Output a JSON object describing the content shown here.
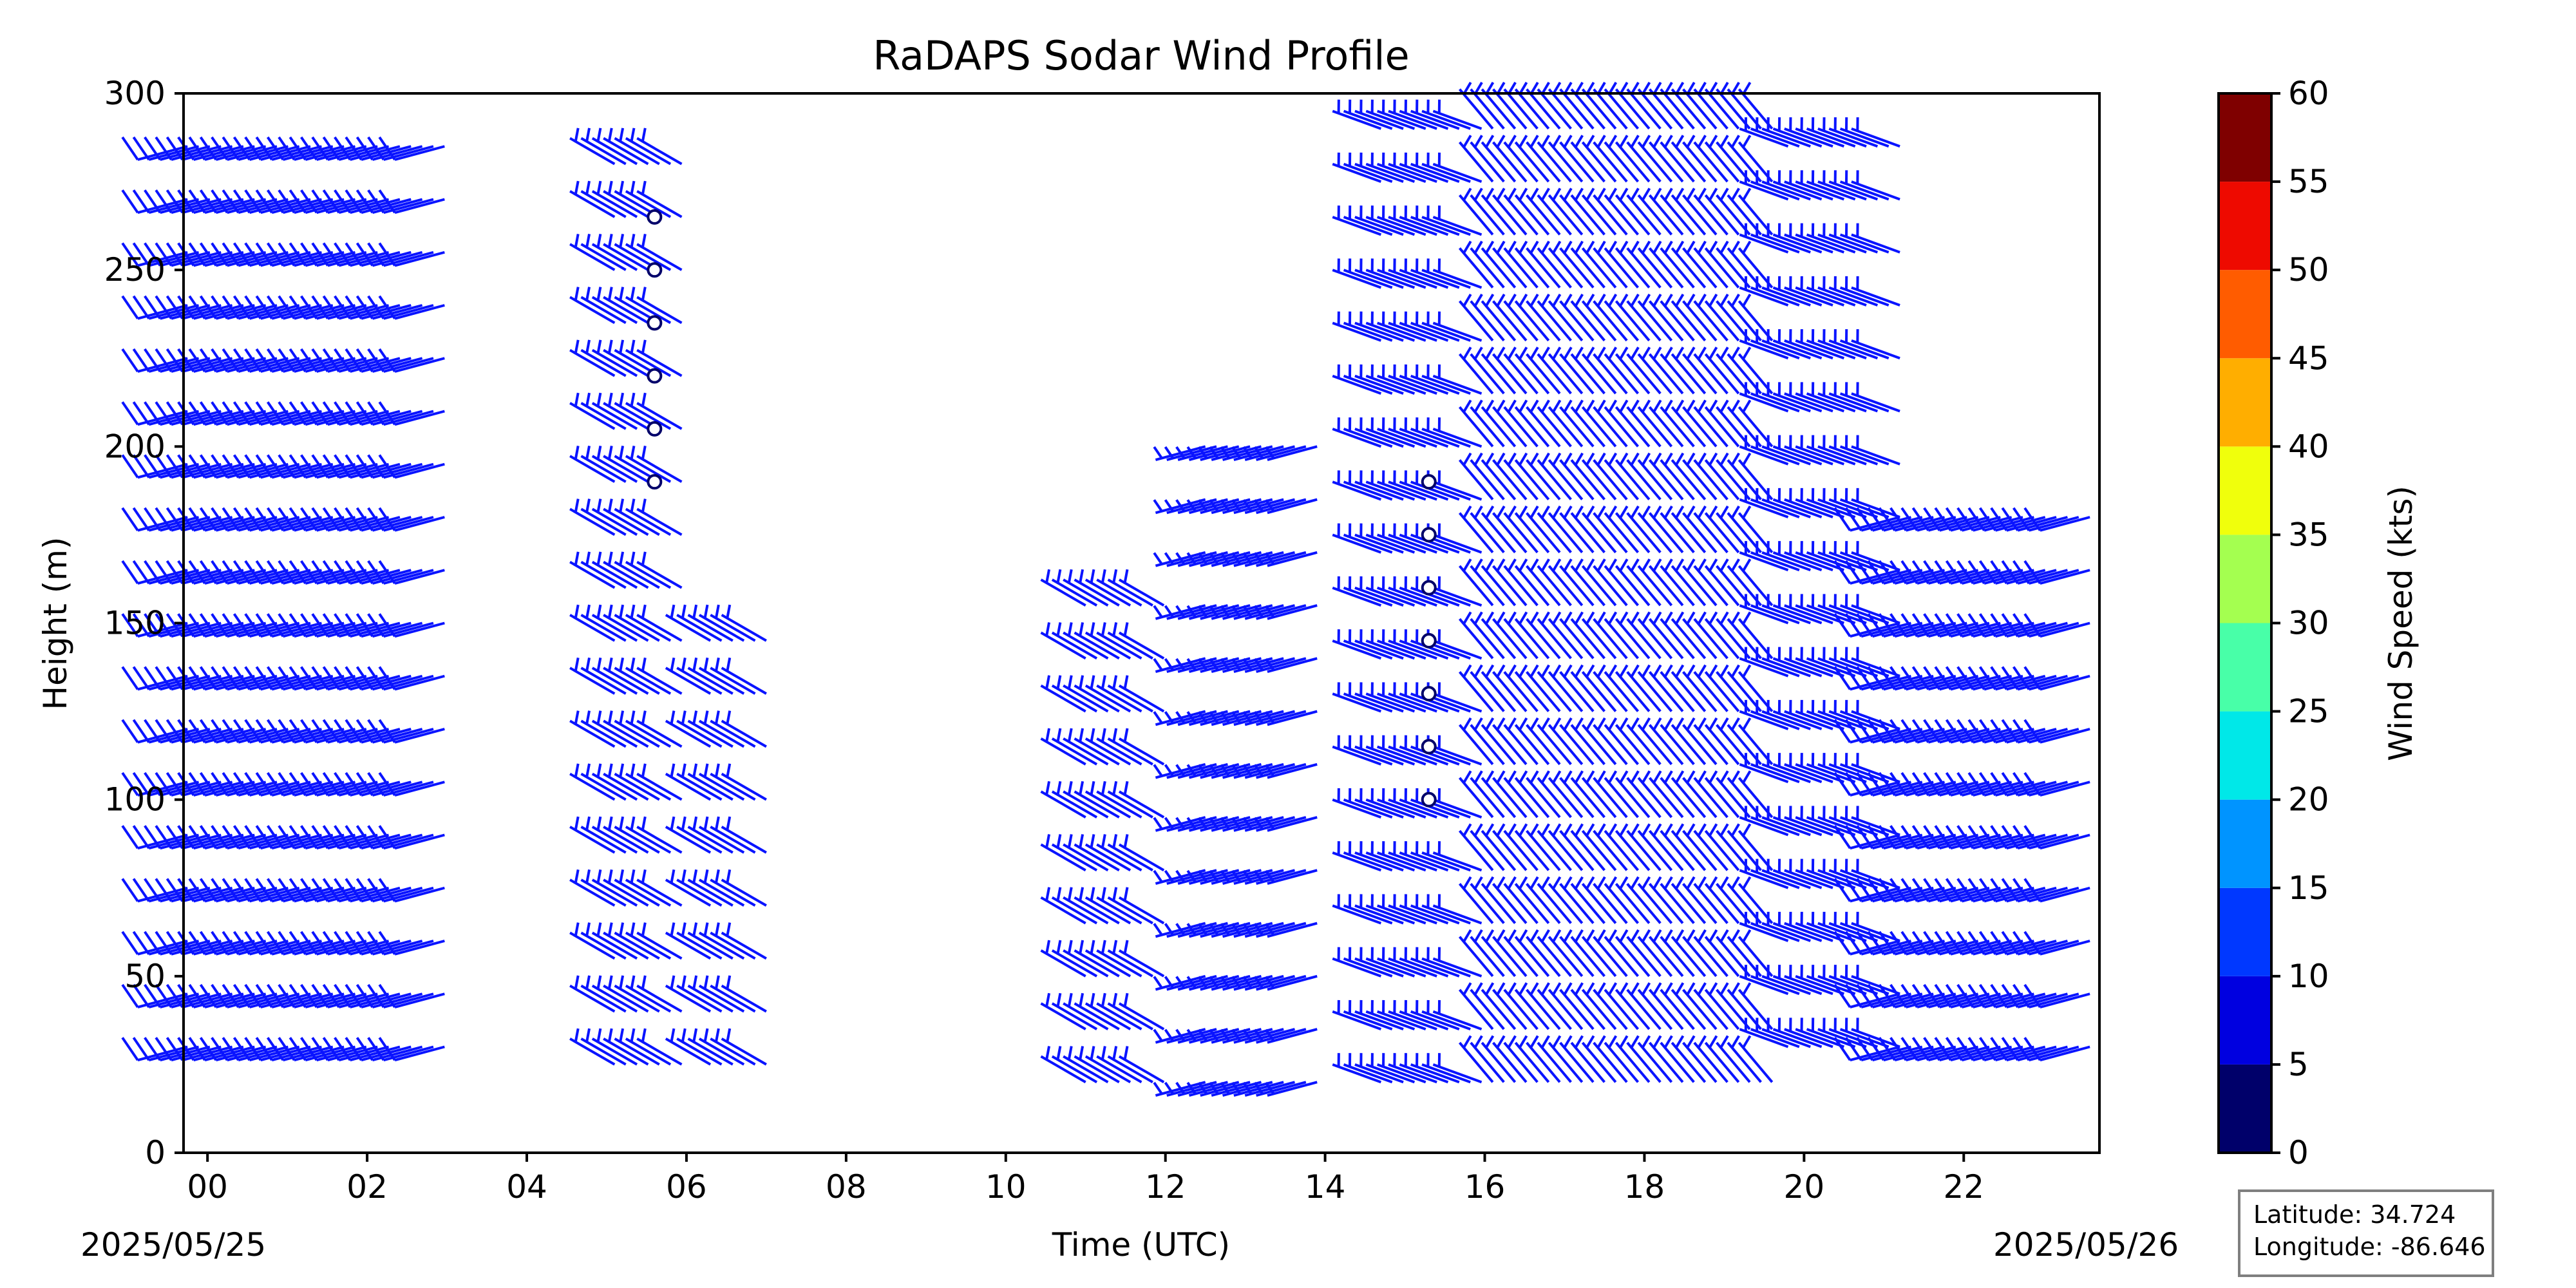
{
  "chart_data": {
    "type": "wind_barb_profile",
    "title": "RaDAPS Sodar Wind Profile",
    "xlabel": "Time (UTC)",
    "ylabel": "Height (m)",
    "x_unit": "hours UTC",
    "xlim": [
      -0.3,
      23.7
    ],
    "ylim": [
      0,
      300
    ],
    "x_tick_labels": [
      "00",
      "02",
      "04",
      "06",
      "08",
      "10",
      "12",
      "14",
      "16",
      "18",
      "20",
      "22"
    ],
    "x_tick_values": [
      0,
      2,
      4,
      6,
      8,
      10,
      12,
      14,
      16,
      18,
      20,
      22
    ],
    "y_tick_values": [
      0,
      50,
      100,
      150,
      200,
      250,
      300
    ],
    "start_date": "2025/05/25",
    "end_date": "2025/05/26",
    "colorbar": {
      "label": "Wind Speed (kts)",
      "levels": [
        0,
        5,
        10,
        15,
        20,
        25,
        30,
        35,
        40,
        45,
        50,
        55,
        60
      ],
      "colors": [
        "#00006a",
        "#0000e0",
        "#0038ff",
        "#0094ff",
        "#00e8e8",
        "#48ffa8",
        "#a4ff50",
        "#f0ff0c",
        "#ffae00",
        "#ff5c00",
        "#ee0a00",
        "#7f0000"
      ]
    },
    "barb_color": "#0a14ff",
    "segments": [
      {
        "name": "00-03 UTC",
        "t_start": -0.25,
        "t_end": 3.0,
        "heights": [
          30,
          45,
          60,
          75,
          90,
          105,
          120,
          135,
          150,
          165,
          180,
          195,
          210,
          225,
          240,
          255,
          270,
          285
        ],
        "direction_deg": 255,
        "speed_kts": 12
      },
      {
        "name": "05-06 UTC",
        "t_start": 5.1,
        "t_end": 6.0,
        "heights": [
          25,
          40,
          55,
          70,
          85,
          100,
          115,
          130,
          145,
          160,
          175,
          190,
          205,
          220,
          235,
          250,
          265,
          280
        ],
        "direction_deg": 300,
        "speed_kts": 8
      },
      {
        "name": "06-07 UTC",
        "t_start": 6.3,
        "t_end": 7.0,
        "heights": [
          25,
          40,
          55,
          70,
          85,
          100,
          115,
          130,
          145
        ],
        "direction_deg": 300,
        "speed_kts": 8
      },
      {
        "name": "11-12 UTC",
        "t_start": 11.0,
        "t_end": 12.0,
        "heights": [
          20,
          35,
          50,
          65,
          80,
          95,
          110,
          125,
          140,
          155
        ],
        "direction_deg": 300,
        "speed_kts": 8
      },
      {
        "name": "12-14 UTC",
        "t_start": 12.5,
        "t_end": 14.0,
        "heights": [
          20,
          35,
          50,
          65,
          80,
          95,
          110,
          125,
          140,
          155,
          170,
          185,
          200
        ],
        "direction_deg": 255,
        "speed_kts": 8
      },
      {
        "name": "14-16 UTC",
        "t_start": 14.7,
        "t_end": 16.0,
        "heights": [
          20,
          35,
          50,
          65,
          80,
          95,
          110,
          125,
          140,
          155,
          170,
          185,
          200,
          215,
          230,
          245,
          260,
          275,
          290
        ],
        "direction_deg": 290,
        "speed_kts": 8
      },
      {
        "name": "16-20 UTC",
        "t_start": 16.1,
        "t_end": 19.6,
        "heights": [
          20,
          35,
          50,
          65,
          80,
          95,
          110,
          125,
          140,
          155,
          170,
          185,
          200,
          215,
          230,
          245,
          260,
          275,
          290
        ],
        "direction_deg": 320,
        "speed_kts": 8
      },
      {
        "name": "20-21 UTC",
        "t_start": 19.8,
        "t_end": 21.2,
        "heights": [
          30,
          45,
          60,
          75,
          90,
          105,
          120,
          135,
          150,
          165,
          180,
          195,
          210,
          225,
          240,
          255,
          270,
          285
        ],
        "direction_deg": 290,
        "speed_kts": 8
      },
      {
        "name": "21-24 UTC",
        "t_start": 21.2,
        "t_end": 23.7,
        "heights": [
          30,
          45,
          60,
          75,
          90,
          105,
          120,
          135,
          150,
          165,
          180
        ],
        "direction_deg": 255,
        "speed_kts": 12
      }
    ],
    "calm_points": [
      {
        "time_utc": 5.6,
        "heights": [
          190,
          205,
          220,
          235,
          250,
          265
        ]
      },
      {
        "time_utc": 15.3,
        "heights": [
          100,
          115,
          130,
          145,
          160,
          175,
          190
        ]
      }
    ]
  },
  "location": {
    "latitude_text": "Latitude: 34.724",
    "longitude_text": "Longitude: -86.646"
  }
}
